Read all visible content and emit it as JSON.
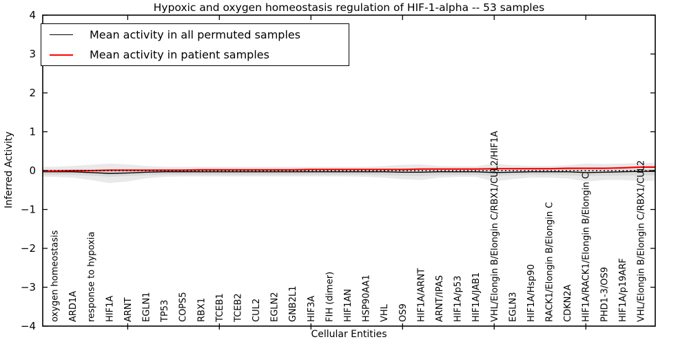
{
  "figure": {
    "background": "#ffffff",
    "frame_color": "#000000"
  },
  "chart_data": {
    "type": "line",
    "title": "Hypoxic and oxygen homeostasis regulation of HIF-1-alpha -- 53 samples",
    "xlabel": "Cellular Entities",
    "ylabel": "Inferred Activity",
    "ylim": [
      -4,
      4
    ],
    "yticks": [
      -4,
      -3,
      -2,
      -1,
      0,
      1,
      2,
      3,
      4
    ],
    "xtick_indices": [
      4,
      9,
      14,
      19,
      24,
      29
    ],
    "grid": false,
    "legend_position": "upper left",
    "categories": [
      "oxygen homeostasis",
      "ARD1A",
      "response to hypoxia",
      "HIF1A",
      "ARNT",
      "EGLN1",
      "TP53",
      "COPS5",
      "RBX1",
      "TCEB1",
      "TCEB2",
      "CUL2",
      "EGLN2",
      "GNB2L1",
      "HIF3A",
      "FIH (dimer)",
      "HIF1AN",
      "HSP90AA1",
      "VHL",
      "OS9",
      "HIF1A/ARNT",
      "ARNT/IPAS",
      "HIF1A/p53",
      "HIF1A/JAB1",
      "VHL/Elongin B/Elongin C/RBX1/CUL2/HIF1A",
      "EGLN3",
      "HIF1A/Hsp90",
      "RACK1/Elongin B/Elongin C",
      "CDKN2A",
      "HIF1A/RACK1/Elongin B/Elongin C",
      "PHD1-3/OS9",
      "HIF1A/p19ARF",
      "VHL/Elongin B/Elongin C/RBX1/CUL2"
    ],
    "series": [
      {
        "name": "Mean activity in all permuted samples",
        "color": "#000000",
        "values": [
          -0.03,
          -0.03,
          -0.05,
          -0.07,
          -0.06,
          -0.04,
          -0.03,
          -0.03,
          -0.03,
          -0.03,
          -0.03,
          -0.03,
          -0.03,
          -0.03,
          -0.03,
          -0.03,
          -0.03,
          -0.03,
          -0.03,
          -0.04,
          -0.04,
          -0.03,
          -0.03,
          -0.03,
          -0.05,
          -0.04,
          -0.03,
          -0.03,
          -0.03,
          -0.05,
          -0.04,
          -0.03,
          -0.02
        ]
      },
      {
        "name": "Mean activity in patient samples",
        "color": "#ff0000",
        "values": [
          -0.01,
          0.0,
          0.0,
          0.01,
          0.01,
          0.01,
          0.01,
          0.01,
          0.02,
          0.02,
          0.02,
          0.02,
          0.02,
          0.02,
          0.03,
          0.03,
          0.03,
          0.03,
          0.03,
          0.03,
          0.04,
          0.04,
          0.04,
          0.04,
          0.05,
          0.05,
          0.05,
          0.05,
          0.06,
          0.06,
          0.06,
          0.07,
          0.09
        ]
      }
    ],
    "bands": [
      {
        "name": "permuted-range-outer",
        "color": "#e9e9e9",
        "upper": [
          0.1,
          0.12,
          0.15,
          0.18,
          0.16,
          0.12,
          0.1,
          0.1,
          0.1,
          0.1,
          0.1,
          0.1,
          0.1,
          0.1,
          0.1,
          0.1,
          0.1,
          0.1,
          0.12,
          0.15,
          0.16,
          0.12,
          0.11,
          0.11,
          0.18,
          0.14,
          0.12,
          0.12,
          0.14,
          0.18,
          0.17,
          0.18,
          0.2
        ],
        "lower": [
          -0.16,
          -0.18,
          -0.24,
          -0.32,
          -0.28,
          -0.2,
          -0.16,
          -0.15,
          -0.15,
          -0.15,
          -0.15,
          -0.15,
          -0.15,
          -0.15,
          -0.15,
          -0.15,
          -0.15,
          -0.16,
          -0.18,
          -0.22,
          -0.24,
          -0.18,
          -0.16,
          -0.16,
          -0.28,
          -0.22,
          -0.18,
          -0.18,
          -0.2,
          -0.28,
          -0.24,
          -0.24,
          -0.26
        ]
      },
      {
        "name": "permuted-range-inner",
        "color": "#d8d8d8",
        "upper": [
          0.03,
          0.03,
          0.02,
          0.0,
          0.01,
          0.02,
          0.03,
          0.03,
          0.03,
          0.03,
          0.03,
          0.03,
          0.03,
          0.03,
          0.03,
          0.03,
          0.03,
          0.03,
          0.03,
          0.02,
          0.02,
          0.03,
          0.03,
          0.03,
          0.02,
          0.02,
          0.03,
          0.03,
          0.03,
          0.02,
          0.02,
          0.03,
          0.04
        ],
        "lower": [
          -0.11,
          -0.11,
          -0.13,
          -0.16,
          -0.14,
          -0.12,
          -0.11,
          -0.11,
          -0.11,
          -0.11,
          -0.11,
          -0.11,
          -0.11,
          -0.11,
          -0.11,
          -0.11,
          -0.11,
          -0.11,
          -0.12,
          -0.13,
          -0.14,
          -0.12,
          -0.11,
          -0.11,
          -0.14,
          -0.12,
          -0.11,
          -0.11,
          -0.12,
          -0.14,
          -0.13,
          -0.13,
          -0.12
        ]
      }
    ],
    "zero_line": {
      "value": 0,
      "style": "dotted",
      "color": "#000000"
    }
  }
}
